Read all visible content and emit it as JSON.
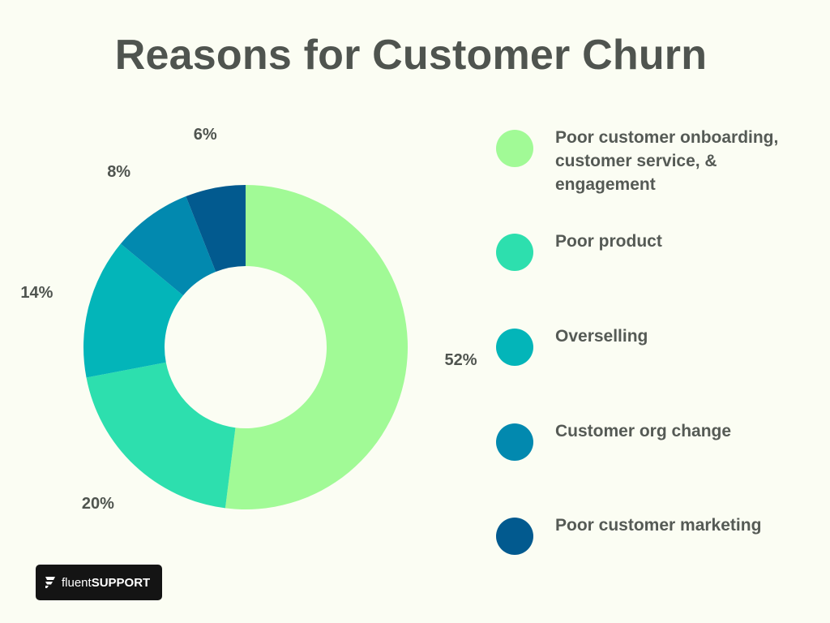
{
  "title": "Reasons for Customer Churn",
  "chart_data": {
    "type": "pie",
    "title": "Reasons for Customer Churn",
    "unit": "%",
    "legend_position": "right",
    "slices": [
      {
        "label": "Poor customer onboarding, customer service, & engagement",
        "value": 52,
        "display": "52%",
        "color": "#a1fa96"
      },
      {
        "label": "Poor product",
        "value": 20,
        "display": "20%",
        "color": "#2ddfae"
      },
      {
        "label": "Overselling",
        "value": 14,
        "display": "14%",
        "color": "#03b5b9"
      },
      {
        "label": "Customer org change",
        "value": 8,
        "display": "8%",
        "color": "#0289af"
      },
      {
        "label": "Poor customer marketing",
        "value": 6,
        "display": "6%",
        "color": "#025a8f"
      }
    ]
  },
  "branding": {
    "name_light": "fluent",
    "name_bold": "SUPPORT"
  }
}
